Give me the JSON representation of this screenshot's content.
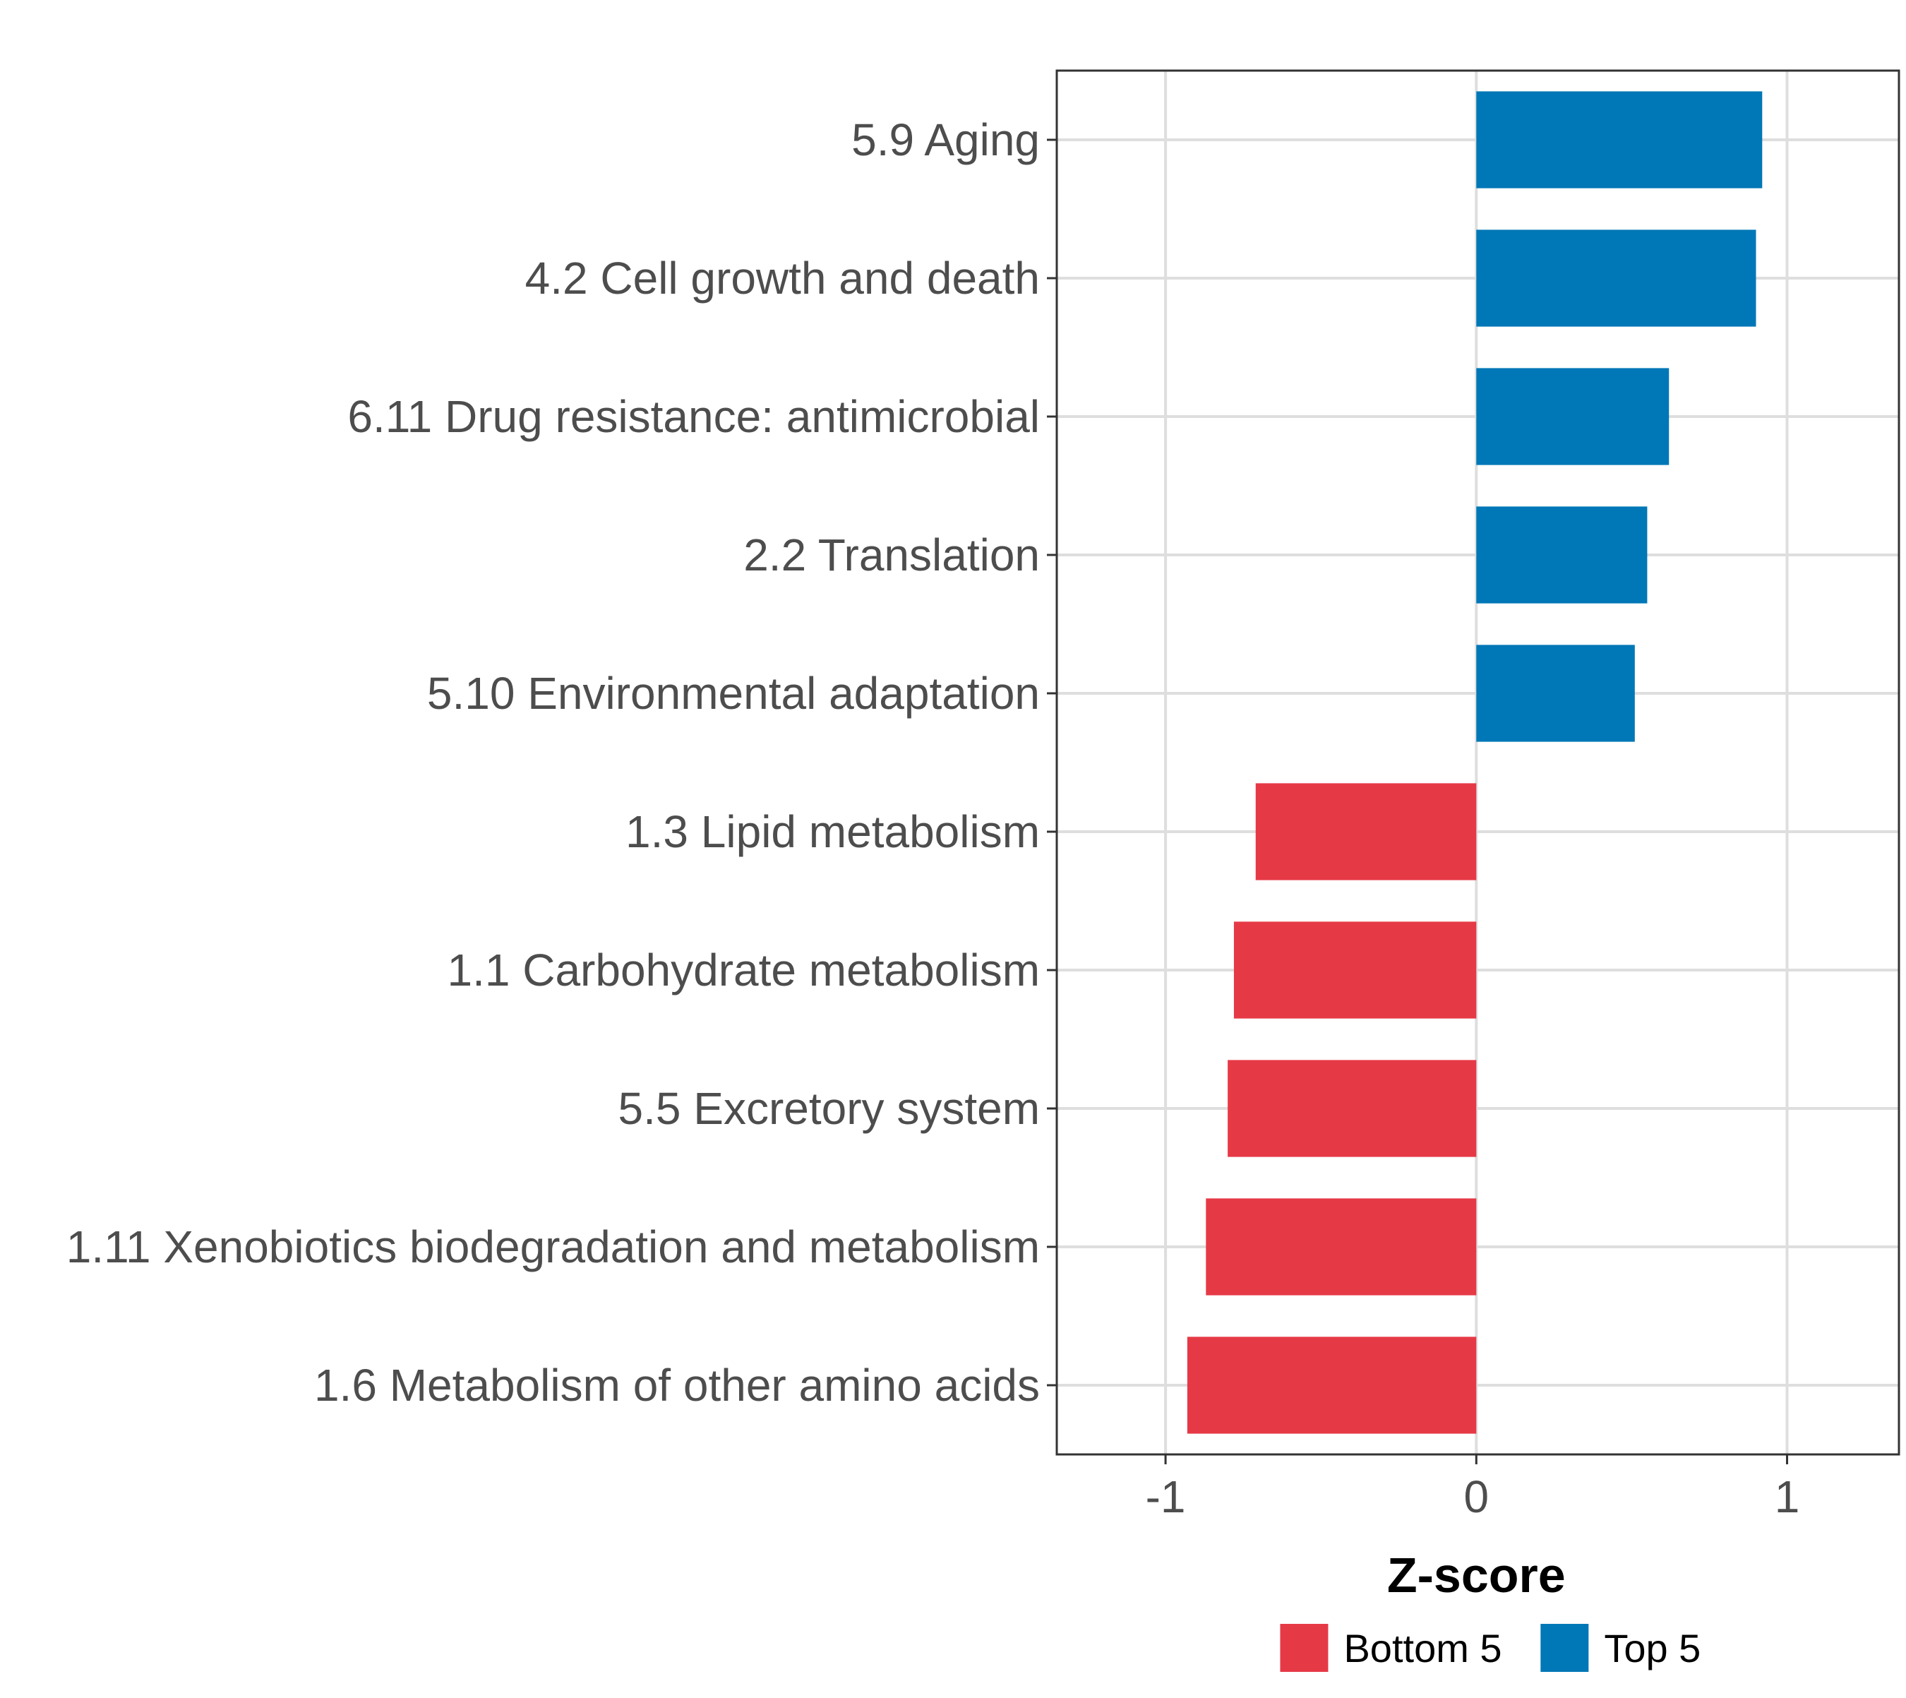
{
  "chart_data": {
    "type": "bar",
    "orientation": "horizontal",
    "title": "",
    "xlabel": "Z-score",
    "ylabel": "",
    "xlim": [
      -1.35,
      1.36
    ],
    "xticks": [
      -1,
      0,
      1
    ],
    "xtick_labels": [
      "-1",
      "0",
      "1"
    ],
    "grid": true,
    "legend_position": "bottom",
    "colors": {
      "Bottom 5": "#E63946",
      "Top 5": "#0077B6"
    },
    "legend": [
      {
        "name": "Bottom 5",
        "color": "#E63946"
      },
      {
        "name": "Top 5",
        "color": "#0077B6"
      }
    ],
    "categories": [
      "5.9 Aging",
      "4.2 Cell growth and death",
      "6.11 Drug resistance: antimicrobial",
      "2.2 Translation",
      "5.10 Environmental adaptation",
      "1.3 Lipid metabolism",
      "1.1 Carbohydrate metabolism",
      "5.5 Excretory system",
      "1.11 Xenobiotics biodegradation and metabolism",
      "1.6 Metabolism of other amino acids"
    ],
    "values": [
      0.92,
      0.9,
      0.62,
      0.55,
      0.51,
      -0.71,
      -0.78,
      -0.8,
      -0.87,
      -0.93
    ],
    "groups": [
      "Top 5",
      "Top 5",
      "Top 5",
      "Top 5",
      "Top 5",
      "Bottom 5",
      "Bottom 5",
      "Bottom 5",
      "Bottom 5",
      "Bottom 5"
    ]
  }
}
